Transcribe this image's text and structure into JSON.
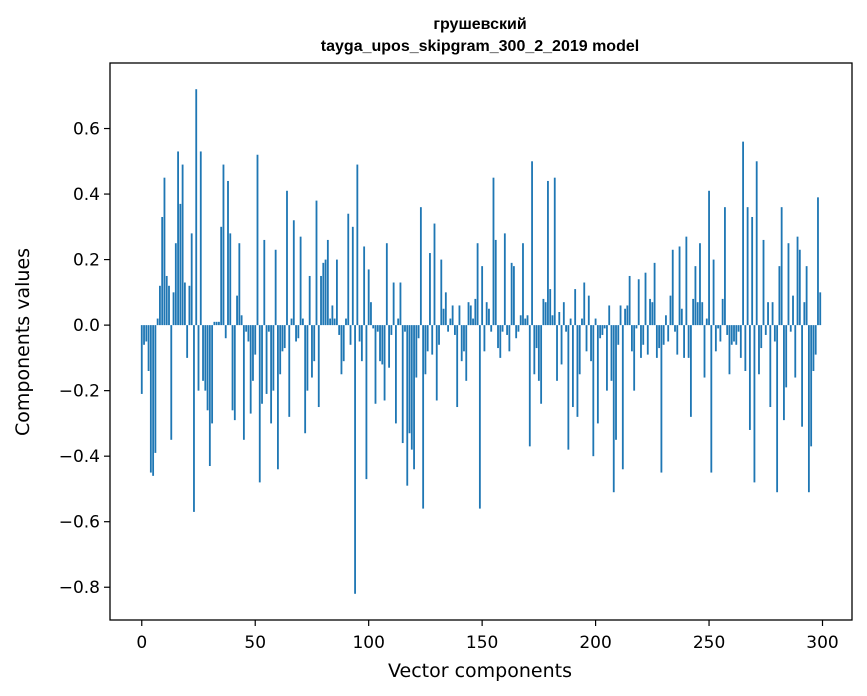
{
  "chart_data": {
    "type": "bar",
    "title": "грушевский",
    "subtitle": "tayga_upos_skipgram_300_2_2019 model",
    "xlabel": "Vector components",
    "ylabel": "Components values",
    "xlim": [
      -14,
      313
    ],
    "ylim": [
      -0.9,
      0.8
    ],
    "xticks": [
      0,
      50,
      100,
      150,
      200,
      250,
      300
    ],
    "yticks": [
      -0.8,
      -0.6,
      -0.4,
      -0.2,
      0.0,
      0.2,
      0.4,
      0.6
    ],
    "ytick_labels": [
      "−0.8",
      "−0.6",
      "−0.4",
      "−0.2",
      "0.0",
      "0.2",
      "0.4",
      "0.6"
    ],
    "xtick_labels": [
      "0",
      "50",
      "100",
      "150",
      "200",
      "250",
      "300"
    ],
    "bar_color": "#1f77b4",
    "grid": false,
    "x": [
      0,
      1,
      2,
      3,
      4,
      5,
      6,
      7,
      8,
      9,
      10,
      11,
      12,
      13,
      14,
      15,
      16,
      17,
      18,
      19,
      20,
      21,
      22,
      23,
      24,
      25,
      26,
      27,
      28,
      29,
      30,
      31,
      32,
      33,
      34,
      35,
      36,
      37,
      38,
      39,
      40,
      41,
      42,
      43,
      44,
      45,
      46,
      47,
      48,
      49,
      50,
      51,
      52,
      53,
      54,
      55,
      56,
      57,
      58,
      59,
      60,
      61,
      62,
      63,
      64,
      65,
      66,
      67,
      68,
      69,
      70,
      71,
      72,
      73,
      74,
      75,
      76,
      77,
      78,
      79,
      80,
      81,
      82,
      83,
      84,
      85,
      86,
      87,
      88,
      89,
      90,
      91,
      92,
      93,
      94,
      95,
      96,
      97,
      98,
      99,
      100,
      101,
      102,
      103,
      104,
      105,
      106,
      107,
      108,
      109,
      110,
      111,
      112,
      113,
      114,
      115,
      116,
      117,
      118,
      119,
      120,
      121,
      122,
      123,
      124,
      125,
      126,
      127,
      128,
      129,
      130,
      131,
      132,
      133,
      134,
      135,
      136,
      137,
      138,
      139,
      140,
      141,
      142,
      143,
      144,
      145,
      146,
      147,
      148,
      149,
      150,
      151,
      152,
      153,
      154,
      155,
      156,
      157,
      158,
      159,
      160,
      161,
      162,
      163,
      164,
      165,
      166,
      167,
      168,
      169,
      170,
      171,
      172,
      173,
      174,
      175,
      176,
      177,
      178,
      179,
      180,
      181,
      182,
      183,
      184,
      185,
      186,
      187,
      188,
      189,
      190,
      191,
      192,
      193,
      194,
      195,
      196,
      197,
      198,
      199,
      200,
      201,
      202,
      203,
      204,
      205,
      206,
      207,
      208,
      209,
      210,
      211,
      212,
      213,
      214,
      215,
      216,
      217,
      218,
      219,
      220,
      221,
      222,
      223,
      224,
      225,
      226,
      227,
      228,
      229,
      230,
      231,
      232,
      233,
      234,
      235,
      236,
      237,
      238,
      239,
      240,
      241,
      242,
      243,
      244,
      245,
      246,
      247,
      248,
      249,
      250,
      251,
      252,
      253,
      254,
      255,
      256,
      257,
      258,
      259,
      260,
      261,
      262,
      263,
      264,
      265,
      266,
      267,
      268,
      269,
      270,
      271,
      272,
      273,
      274,
      275,
      276,
      277,
      278,
      279,
      280,
      281,
      282,
      283,
      284,
      285,
      286,
      287,
      288,
      289,
      290,
      291,
      292,
      293,
      294,
      295,
      296,
      297,
      298,
      299
    ],
    "values": [
      -0.21,
      -0.06,
      -0.05,
      -0.14,
      -0.45,
      -0.46,
      -0.39,
      0.02,
      0.12,
      0.33,
      0.45,
      0.15,
      0.12,
      -0.35,
      0.1,
      0.25,
      0.53,
      0.37,
      0.49,
      0.13,
      -0.1,
      0.12,
      0.28,
      -0.57,
      0.72,
      -0.2,
      0.53,
      -0.17,
      -0.2,
      -0.26,
      -0.43,
      -0.3,
      0.01,
      0.01,
      0.01,
      0.3,
      0.49,
      -0.04,
      0.44,
      0.28,
      -0.26,
      -0.29,
      0.09,
      0.25,
      0.03,
      -0.35,
      -0.02,
      -0.05,
      -0.27,
      -0.17,
      -0.09,
      0.52,
      -0.48,
      -0.24,
      0.26,
      -0.21,
      -0.02,
      -0.3,
      -0.2,
      0.23,
      -0.44,
      -0.15,
      -0.08,
      -0.07,
      0.41,
      -0.28,
      0.02,
      0.32,
      -0.05,
      -0.04,
      0.27,
      0.02,
      -0.33,
      -0.2,
      0.15,
      -0.16,
      -0.11,
      0.38,
      -0.25,
      0.15,
      0.19,
      0.2,
      0.26,
      0.02,
      0.06,
      0.02,
      0.2,
      -0.03,
      -0.15,
      -0.11,
      0.02,
      0.34,
      -0.06,
      0.3,
      -0.82,
      0.49,
      -0.05,
      -0.11,
      0.24,
      -0.47,
      0.17,
      0.07,
      -0.01,
      -0.24,
      -0.02,
      -0.11,
      -0.12,
      -0.23,
      0.25,
      -0.13,
      -0.03,
      0.13,
      -0.3,
      0.02,
      0.13,
      -0.36,
      -0.02,
      -0.49,
      -0.33,
      -0.38,
      -0.44,
      -0.16,
      -0.04,
      0.36,
      -0.56,
      -0.15,
      -0.08,
      0.22,
      -0.09,
      0.31,
      -0.23,
      -0.06,
      0.2,
      0.05,
      0.1,
      -0.02,
      0.02,
      0.06,
      -0.03,
      -0.25,
      0.06,
      -0.11,
      -0.08,
      -0.17,
      0.07,
      0.06,
      0.02,
      0.08,
      0.25,
      -0.56,
      0.18,
      -0.08,
      0.07,
      0.05,
      -0.02,
      0.45,
      0.26,
      -0.07,
      -0.1,
      -0.02,
      0.28,
      -0.03,
      -0.08,
      0.19,
      0.18,
      -0.04,
      -0.02,
      0.03,
      0.25,
      0.02,
      0.03,
      -0.37,
      0.5,
      -0.15,
      -0.07,
      -0.17,
      -0.24,
      0.08,
      0.07,
      0.44,
      0.11,
      0.03,
      0.45,
      -0.17,
      0.04,
      -0.12,
      0.07,
      -0.02,
      -0.38,
      0.02,
      -0.25,
      0.11,
      -0.28,
      -0.15,
      0.02,
      0.13,
      -0.08,
      0.09,
      -0.11,
      -0.4,
      0.02,
      -0.3,
      -0.04,
      -0.03,
      -0.01,
      -0.2,
      0.06,
      -0.17,
      -0.51,
      -0.35,
      -0.06,
      0.06,
      -0.44,
      0.05,
      0.06,
      0.15,
      -0.08,
      -0.2,
      -0.01,
      0.14,
      -0.1,
      -0.06,
      0.16,
      -0.09,
      0.08,
      0.07,
      0.19,
      -0.1,
      -0.07,
      -0.45,
      -0.06,
      0.03,
      -0.05,
      0.09,
      0.23,
      -0.02,
      -0.09,
      0.24,
      0.05,
      -0.1,
      0.27,
      -0.1,
      -0.28,
      0.08,
      0.18,
      0.07,
      0.25,
      0.07,
      -0.16,
      0.02,
      0.41,
      -0.45,
      0.2,
      -0.08,
      -0.01,
      -0.05,
      0.08,
      0.36,
      -0.03,
      -0.15,
      -0.06,
      -0.05,
      -0.06,
      -0.02,
      -0.1,
      0.56,
      -0.14,
      0.36,
      -0.32,
      0.33,
      -0.48,
      0.5,
      -0.15,
      -0.07,
      0.26,
      -0.03,
      0.07,
      -0.25,
      0.07,
      -0.05,
      -0.51,
      0.18,
      0.36,
      -0.29,
      -0.19,
      0.25,
      -0.02,
      0.09,
      -0.16,
      0.27,
      0.23,
      -0.31,
      0.07,
      0.18,
      -0.51,
      -0.37,
      -0.14,
      -0.09,
      0.39,
      0.1
    ]
  }
}
